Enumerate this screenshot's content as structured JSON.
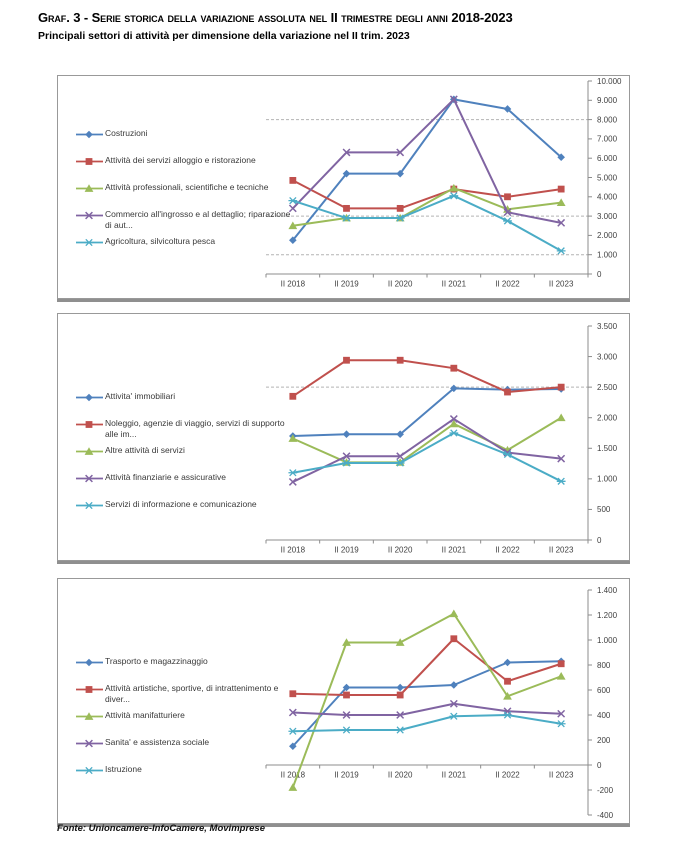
{
  "header": {
    "title": "Graf. 3 - Serie storica della variazione assoluta nel II trimestre degli anni 2018-2023",
    "subtitle": "Principali settori di attività per dimensione della variazione nel II trim. 2023"
  },
  "footer": {
    "source": "Fonte: Unioncamere-InfoCamere, Movimprese"
  },
  "colors": {
    "series_blue": "#4F81BD",
    "series_red": "#C0504D",
    "series_green": "#9BBB59",
    "series_purple": "#8064A2",
    "series_cyan": "#4BACC6",
    "axis": "#8c8c8c",
    "gridline": "#b4b4b4",
    "tick_label": "#404040"
  },
  "chart_data": [
    {
      "type": "line",
      "title": "",
      "categories": [
        "II 2018",
        "II 2019",
        "II 2020",
        "II 2021",
        "II 2022",
        "II 2023"
      ],
      "ylim": [
        0,
        10000
      ],
      "ytick_step": 1000,
      "gridlines": [
        8000,
        3000,
        1000
      ],
      "legend_position": "left",
      "grid": "partial",
      "series": [
        {
          "name": "Costruzioni",
          "color": "#4F81BD",
          "marker": "diamond",
          "values": [
            1750,
            5200,
            5200,
            9050,
            8550,
            6050
          ]
        },
        {
          "name": "Attività dei servizi alloggio e ristorazione",
          "color": "#C0504D",
          "marker": "square",
          "values": [
            4850,
            3400,
            3400,
            4400,
            4000,
            4400
          ]
        },
        {
          "name": "Attività professionali, scientifiche e tecniche",
          "color": "#9BBB59",
          "marker": "triangle",
          "values": [
            2500,
            2900,
            2900,
            4450,
            3350,
            3700
          ]
        },
        {
          "name": "Commercio all'ingrosso e al dettaglio; riparazione di aut...",
          "color": "#8064A2",
          "marker": "x",
          "values": [
            3400,
            6300,
            6300,
            9050,
            3200,
            2650
          ]
        },
        {
          "name": "Agricoltura, silvicoltura pesca",
          "color": "#4BACC6",
          "marker": "star",
          "values": [
            3800,
            2900,
            2900,
            4050,
            2750,
            1200
          ]
        }
      ]
    },
    {
      "type": "line",
      "title": "",
      "categories": [
        "II 2018",
        "II 2019",
        "II 2020",
        "II 2021",
        "II 2022",
        "II 2023"
      ],
      "ylim": [
        0,
        3500
      ],
      "ytick_step": 500,
      "gridlines": [
        2500
      ],
      "legend_position": "left",
      "grid": "partial",
      "series": [
        {
          "name": "Attivita' immobiliari",
          "color": "#4F81BD",
          "marker": "diamond",
          "values": [
            1700,
            1730,
            1730,
            2480,
            2460,
            2470
          ]
        },
        {
          "name": "Noleggio, agenzie di viaggio, servizi di supporto alle im...",
          "color": "#C0504D",
          "marker": "square",
          "values": [
            2350,
            2940,
            2940,
            2810,
            2420,
            2500
          ]
        },
        {
          "name": "Altre attività di servizi",
          "color": "#9BBB59",
          "marker": "triangle",
          "values": [
            1660,
            1270,
            1270,
            1900,
            1470,
            2000
          ]
        },
        {
          "name": "Attività finanziarie e assicurative",
          "color": "#8064A2",
          "marker": "x",
          "values": [
            950,
            1370,
            1370,
            1980,
            1430,
            1330
          ]
        },
        {
          "name": "Servizi di informazione e comunicazione",
          "color": "#4BACC6",
          "marker": "star",
          "values": [
            1100,
            1260,
            1260,
            1750,
            1400,
            960
          ]
        }
      ]
    },
    {
      "type": "line",
      "title": "",
      "categories": [
        "II 2018",
        "II 2019",
        "II 2020",
        "II 2021",
        "II 2022",
        "II 2023"
      ],
      "ylim": [
        -400,
        1400
      ],
      "ytick_step": 200,
      "gridlines": [],
      "legend_position": "left",
      "grid": "off",
      "series": [
        {
          "name": "Trasporto e magazzinaggio",
          "color": "#4F81BD",
          "marker": "diamond",
          "values": [
            150,
            620,
            620,
            640,
            820,
            830
          ]
        },
        {
          "name": "Attività artistiche, sportive, di intrattenimento e diver...",
          "color": "#C0504D",
          "marker": "square",
          "values": [
            570,
            560,
            560,
            1010,
            670,
            810
          ]
        },
        {
          "name": "Attività manifatturiere",
          "color": "#9BBB59",
          "marker": "triangle",
          "values": [
            -180,
            980,
            980,
            1210,
            550,
            710
          ]
        },
        {
          "name": "Sanita' e assistenza sociale",
          "color": "#8064A2",
          "marker": "x",
          "values": [
            420,
            400,
            400,
            490,
            430,
            410
          ]
        },
        {
          "name": "Istruzione",
          "color": "#4BACC6",
          "marker": "star",
          "values": [
            270,
            280,
            280,
            390,
            400,
            330
          ]
        }
      ]
    }
  ]
}
